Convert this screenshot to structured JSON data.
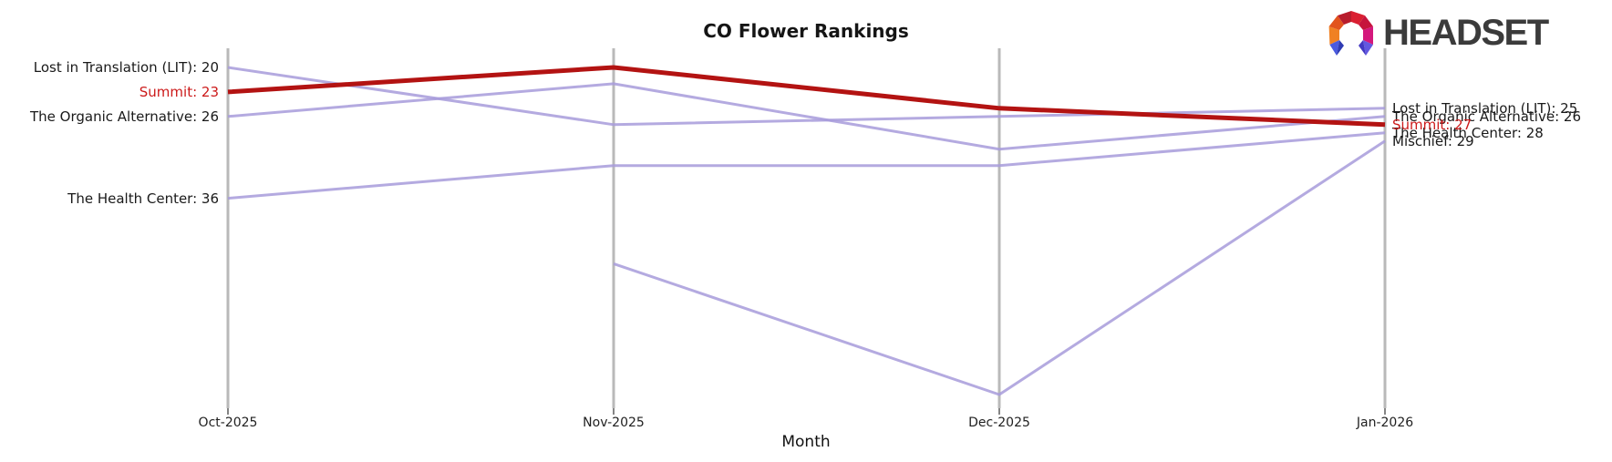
{
  "title": "CO Flower Rankings",
  "xlabel": "Month",
  "logo": {
    "text": "HEADSET",
    "icon": "headset-logo-icon",
    "icon_palette": [
      "#f08123",
      "#e2531d",
      "#b81c2c",
      "#da1f31",
      "#c6143c",
      "#d4187c",
      "#4a5adf",
      "#2f3bb3",
      "#6258e0",
      "#4338c2"
    ]
  },
  "colors": {
    "line_default": "#a79bda",
    "line_highlight": "#b31312",
    "label_default": "#1a1a1a",
    "label_highlight": "#cc1a1a",
    "axis": "#b9b9b9",
    "tick": "#333333"
  },
  "chart_data": {
    "type": "line",
    "variant": "bump-ranking (lower rank = higher position)",
    "title": "CO Flower Rankings",
    "xlabel": "Month",
    "categories": [
      "Oct-2025",
      "Nov-2025",
      "Dec-2025",
      "Jan-2026"
    ],
    "series": [
      {
        "name": "Lost in Translation (LIT)",
        "values": [
          20,
          27,
          26,
          25
        ],
        "highlight": false,
        "left_label": "Lost in Translation (LIT): 20",
        "right_label": "Lost in Translation (LIT): 25"
      },
      {
        "name": "The Organic Alternative",
        "values": [
          26,
          22,
          30,
          26
        ],
        "highlight": false,
        "left_label": "The Organic Alternative: 26",
        "right_label": "The Organic Alternative: 26"
      },
      {
        "name": "The Health Center",
        "values": [
          36,
          32,
          32,
          28
        ],
        "highlight": false,
        "left_label": "The Health Center: 36",
        "right_label": "The Health Center: 28"
      },
      {
        "name": "Mischief",
        "values": [
          null,
          44,
          60,
          29
        ],
        "highlight": false,
        "left_label": null,
        "right_label": "Mischief: 29"
      },
      {
        "name": "Summit",
        "values": [
          23,
          20,
          25,
          27
        ],
        "highlight": true,
        "left_label": "Summit: 23",
        "right_label": "Summit: 27"
      }
    ],
    "y_axis_inverted": true,
    "ylim": [
      18,
      62
    ],
    "grid": "vertical category axes only",
    "legend": "none"
  }
}
